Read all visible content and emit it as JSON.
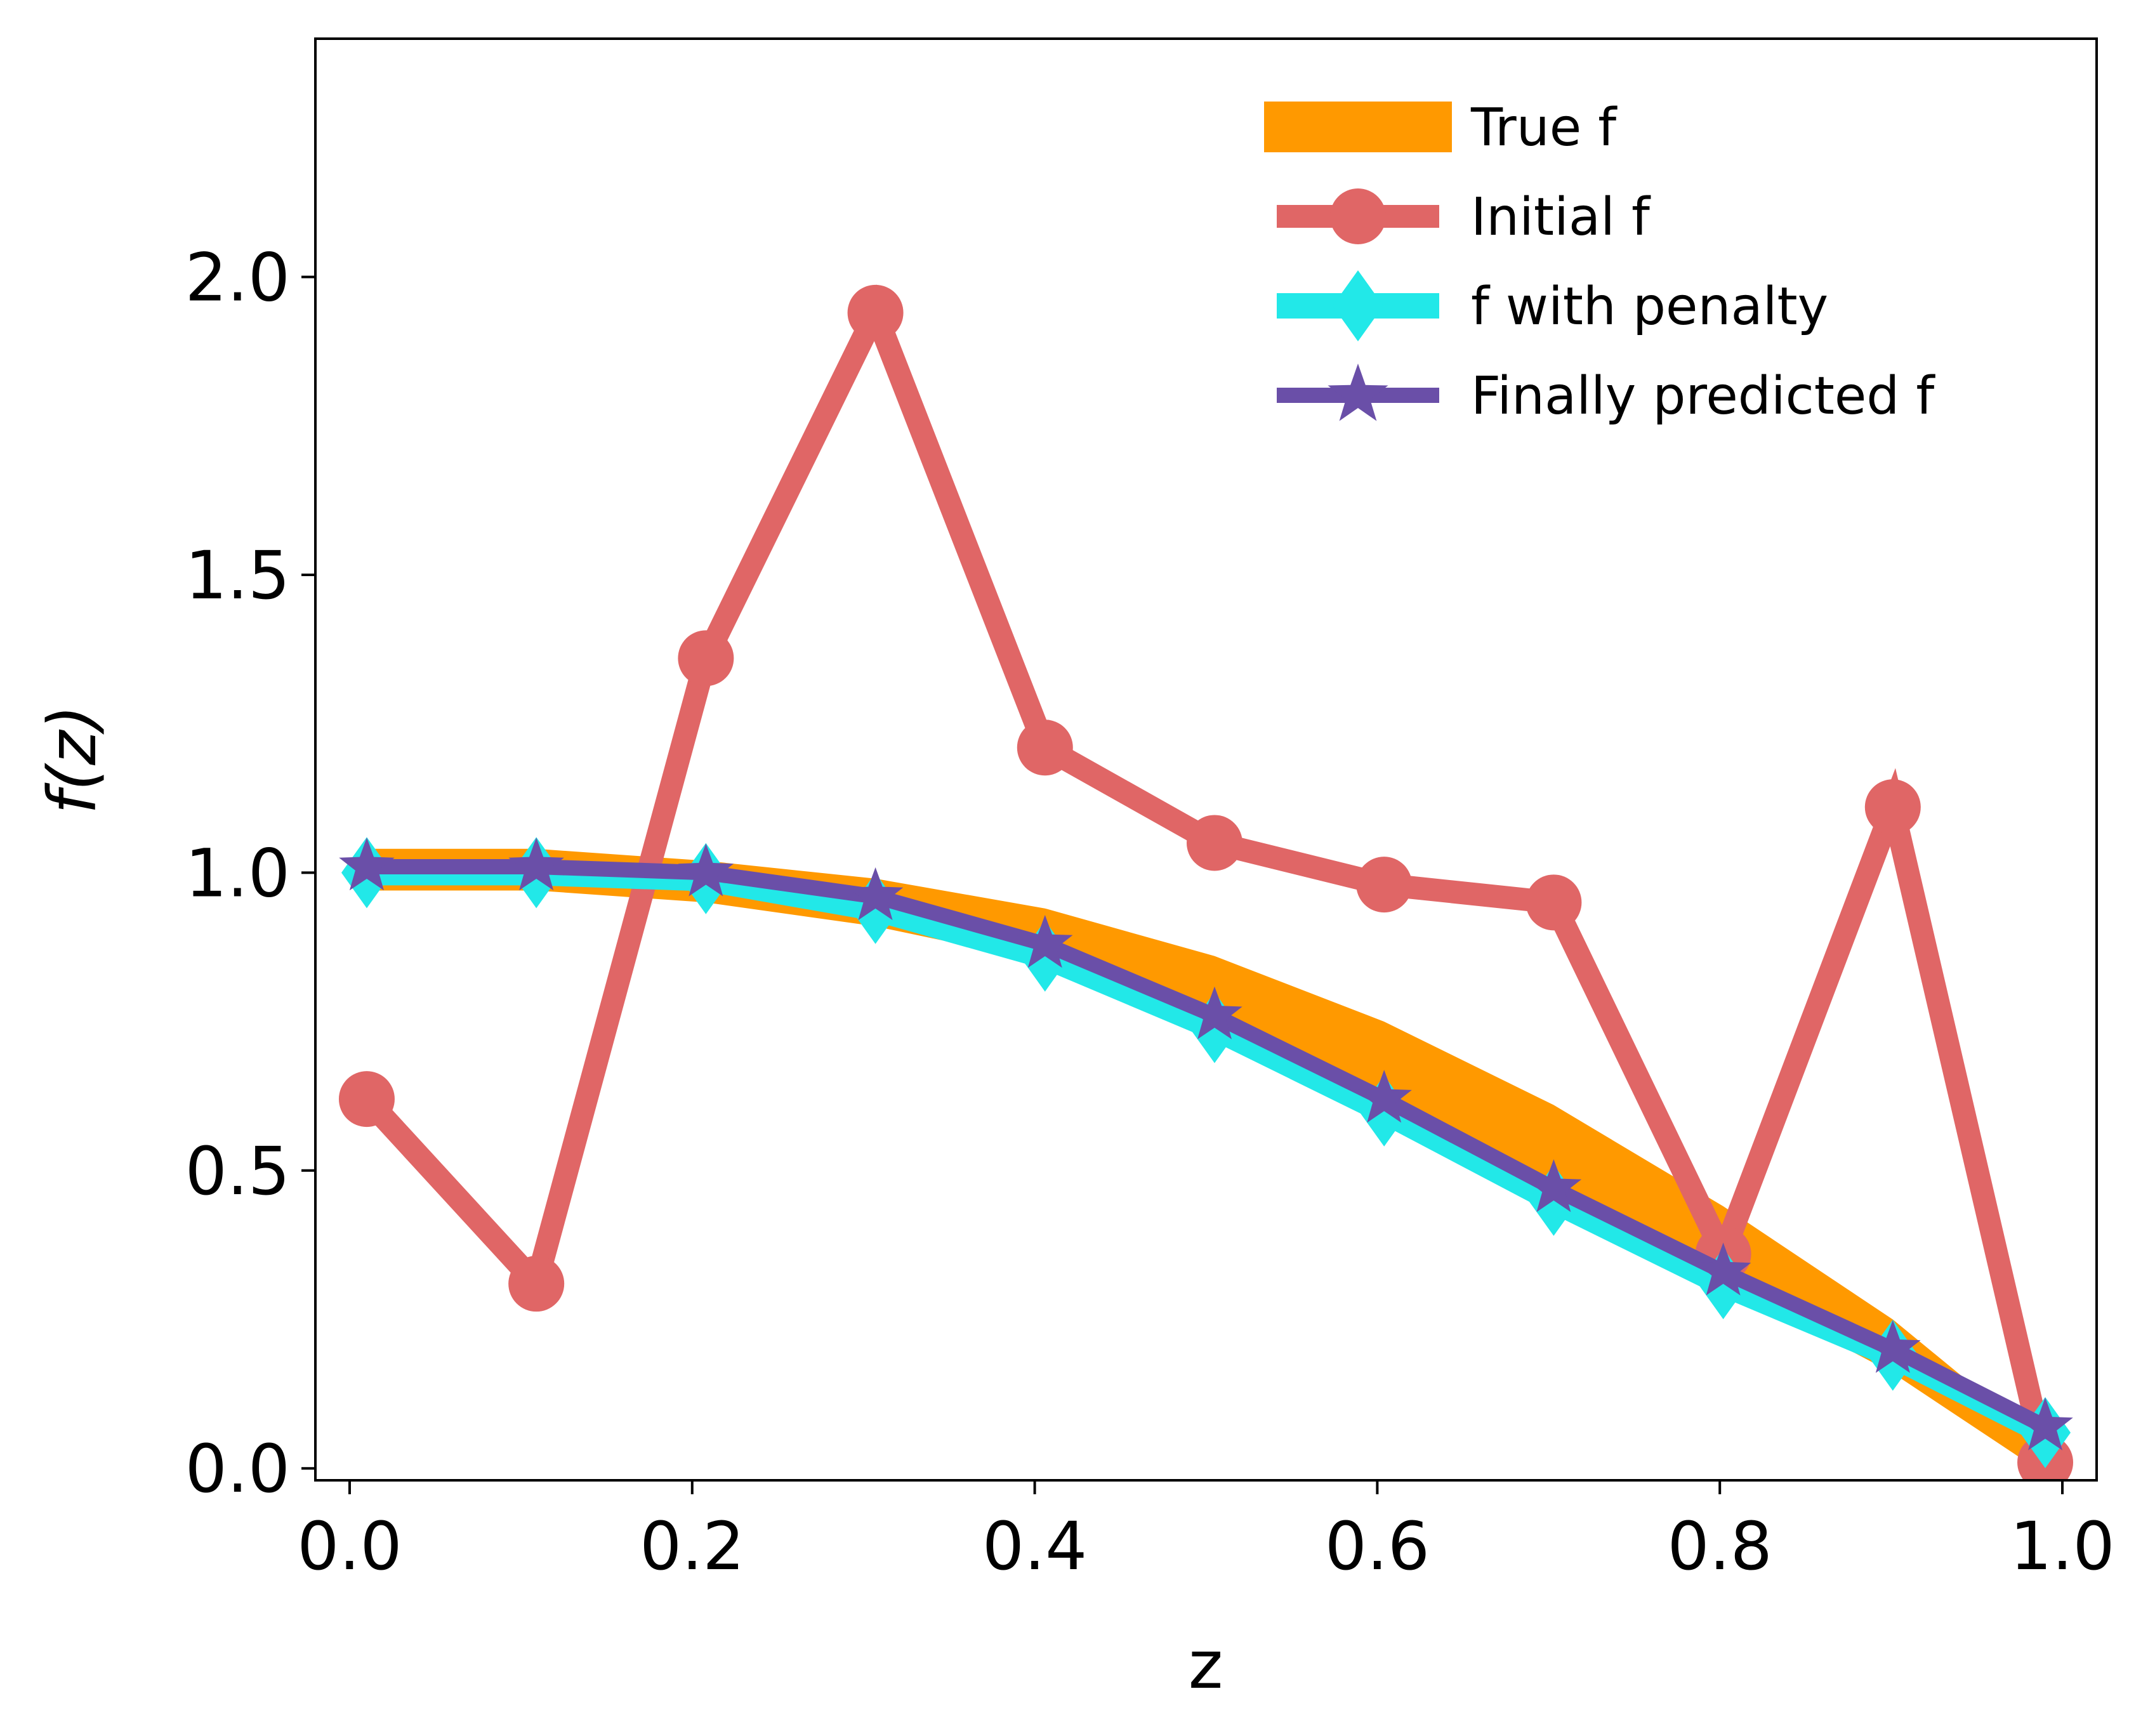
{
  "chart_data": {
    "type": "line",
    "xlabel": "z",
    "ylabel": "f(z)",
    "xlim": [
      -0.02,
      1.02
    ],
    "ylim": [
      -0.02,
      2.4
    ],
    "x_ticks": [
      0.0,
      0.2,
      0.4,
      0.6,
      0.8,
      1.0
    ],
    "x_tick_labels": [
      "0.0",
      "0.2",
      "0.4",
      "0.6",
      "0.8",
      "1.0"
    ],
    "y_ticks": [
      0.0,
      0.5,
      1.0,
      1.5,
      2.0
    ],
    "y_tick_labels": [
      "0.0",
      "0.5",
      "1.0",
      "1.5",
      "2.0"
    ],
    "grid": false,
    "legend_position": "top-right",
    "x": [
      0.01,
      0.109,
      0.208,
      0.307,
      0.406,
      0.505,
      0.604,
      0.703,
      0.802,
      0.901,
      0.99
    ],
    "series": [
      {
        "name": "True f",
        "style": "band",
        "color": "#ff9900",
        "upper": [
          1.04,
          1.04,
          1.02,
          0.99,
          0.94,
          0.86,
          0.75,
          0.61,
          0.44,
          0.25,
          0.04
        ],
        "lower": [
          0.97,
          0.97,
          0.95,
          0.91,
          0.85,
          0.74,
          0.62,
          0.47,
          0.31,
          0.16,
          -0.01
        ]
      },
      {
        "name": "Initial f",
        "style": "line-circle",
        "color": "#e06666",
        "values": [
          0.62,
          0.31,
          1.36,
          1.94,
          1.21,
          1.05,
          0.98,
          0.95,
          0.36,
          1.11,
          0.01
        ]
      },
      {
        "name": "f with penalty",
        "style": "line-diamond",
        "color": "#22e8e8",
        "values": [
          1.0,
          1.0,
          0.99,
          0.94,
          0.86,
          0.74,
          0.6,
          0.45,
          0.31,
          0.19,
          0.06
        ]
      },
      {
        "name": "Finally predicted f",
        "style": "line-star",
        "color": "#6a4fa8",
        "values": [
          1.01,
          1.01,
          1.0,
          0.96,
          0.88,
          0.76,
          0.62,
          0.47,
          0.33,
          0.2,
          0.07
        ]
      }
    ]
  }
}
